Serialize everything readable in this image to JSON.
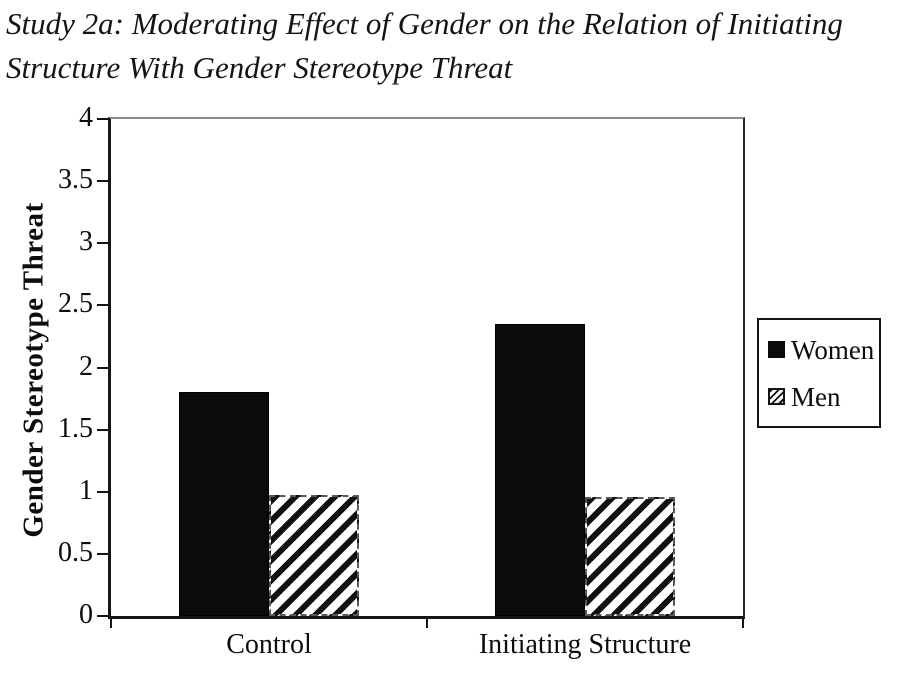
{
  "figure_title_lines": [
    "Study 2a: Moderating Effect of Gender on the Relation of Initiating",
    "Structure With Gender Stereotype Threat"
  ],
  "chart_data": {
    "type": "bar",
    "title": "Study 2a: Moderating Effect of Gender on the Relation of Initiating Structure With Gender Stereotype Threat",
    "categories": [
      "Control",
      "Initiating Structure"
    ],
    "series": [
      {
        "name": "Women",
        "pattern": "solid",
        "values": [
          1.8,
          2.35
        ]
      },
      {
        "name": "Men",
        "pattern": "hatch",
        "values": [
          0.97,
          0.96
        ]
      }
    ],
    "xlabel": "",
    "ylabel": "Gender Stereotype Threat",
    "ylim": [
      0,
      4
    ],
    "ytick_step": 0.5,
    "ytick_labels": [
      "4",
      "3.5",
      "3",
      "2.5",
      "2",
      "1.5",
      "1",
      "0.5",
      "0"
    ],
    "legend_position": "right",
    "legend_entries": [
      "Women",
      "Men"
    ],
    "grid": false,
    "colors": {
      "bar_fill": "#0b0b0b",
      "hatch_stripe": "#111111",
      "background": "#ffffff",
      "axis": "#151515",
      "plot_top_border": "#8c8c8c"
    }
  }
}
